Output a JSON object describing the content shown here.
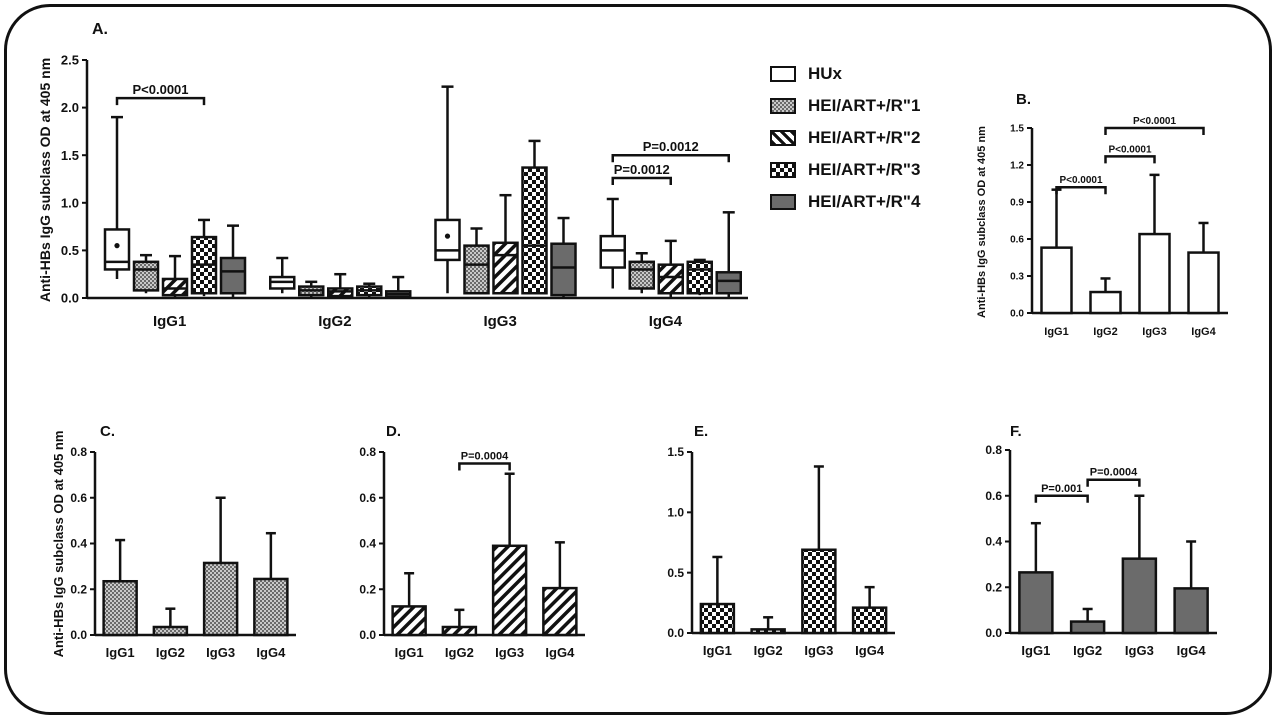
{
  "colors": {
    "line": "#111111",
    "dark_fill": "#6b6b6b",
    "text": "#111111"
  },
  "legend": {
    "items": [
      {
        "name": "HUx",
        "pattern": "white"
      },
      {
        "name": "HEI/ART+/R\"1",
        "pattern": "dots"
      },
      {
        "name": "HEI/ART+/R\"2",
        "pattern": "hatch"
      },
      {
        "name": "HEI/ART+/R\"3",
        "pattern": "checker"
      },
      {
        "name": "HEI/ART+/R\"4",
        "pattern": "dark"
      }
    ]
  },
  "chart_data": [
    {
      "panel": "A.",
      "type": "box",
      "ylabel": "Anti-HBs IgG subclass OD at 405 nm",
      "ylim": [
        0,
        2.5
      ],
      "yticks": [
        "0.0",
        "0.5",
        "1.0",
        "1.5",
        "2.0",
        "2.5"
      ],
      "categories": [
        "IgG1",
        "IgG2",
        "IgG3",
        "IgG4"
      ],
      "groups": [
        "HUx",
        "HEI/ART+/R\"1",
        "HEI/ART+/R\"2",
        "HEI/ART+/R\"3",
        "HEI/ART+/R\"4"
      ],
      "boxes": [
        [
          {
            "min": 0.2,
            "q1": 0.3,
            "median": 0.38,
            "q3": 0.72,
            "max": 1.9,
            "mean": 0.55
          },
          {
            "min": 0.05,
            "q1": 0.08,
            "median": 0.3,
            "q3": 0.38,
            "max": 0.45
          },
          {
            "min": 0.0,
            "q1": 0.03,
            "median": 0.1,
            "q3": 0.2,
            "max": 0.44
          },
          {
            "min": 0.02,
            "q1": 0.05,
            "median": 0.35,
            "q3": 0.64,
            "max": 0.82
          },
          {
            "min": 0.0,
            "q1": 0.05,
            "median": 0.28,
            "q3": 0.42,
            "max": 0.76
          }
        ],
        [
          {
            "min": 0.05,
            "q1": 0.1,
            "median": 0.17,
            "q3": 0.22,
            "max": 0.42
          },
          {
            "min": 0.0,
            "q1": 0.03,
            "median": 0.08,
            "q3": 0.12,
            "max": 0.17
          },
          {
            "min": 0.0,
            "q1": 0.02,
            "median": 0.07,
            "q3": 0.1,
            "max": 0.25
          },
          {
            "min": 0.0,
            "q1": 0.03,
            "median": 0.08,
            "q3": 0.12,
            "max": 0.15
          },
          {
            "min": 0.0,
            "q1": 0.01,
            "median": 0.04,
            "q3": 0.07,
            "max": 0.22
          }
        ],
        [
          {
            "min": 0.05,
            "q1": 0.4,
            "median": 0.5,
            "q3": 0.82,
            "max": 2.22,
            "mean": 0.65
          },
          {
            "min": 0.05,
            "q1": 0.05,
            "median": 0.35,
            "q3": 0.55,
            "max": 0.73
          },
          {
            "min": 0.05,
            "q1": 0.05,
            "median": 0.45,
            "q3": 0.58,
            "max": 1.08
          },
          {
            "min": 0.05,
            "q1": 0.05,
            "median": 0.55,
            "q3": 1.37,
            "max": 1.65
          },
          {
            "min": 0.0,
            "q1": 0.03,
            "median": 0.32,
            "q3": 0.57,
            "max": 0.84
          }
        ],
        [
          {
            "min": 0.1,
            "q1": 0.32,
            "median": 0.5,
            "q3": 0.65,
            "max": 1.04
          },
          {
            "min": 0.05,
            "q1": 0.1,
            "median": 0.3,
            "q3": 0.38,
            "max": 0.47
          },
          {
            "min": 0.0,
            "q1": 0.05,
            "median": 0.22,
            "q3": 0.35,
            "max": 0.6
          },
          {
            "min": 0.03,
            "q1": 0.05,
            "median": 0.3,
            "q3": 0.38,
            "max": 0.4
          },
          {
            "min": 0.0,
            "q1": 0.05,
            "median": 0.18,
            "q3": 0.27,
            "max": 0.9
          }
        ]
      ],
      "annotations": [
        {
          "text": "P<0.0001",
          "from_category": 0,
          "from_group": 0,
          "to_category": 0,
          "to_group": 3,
          "y": 2.1
        },
        {
          "text": "P=0.0012",
          "from_category": 3,
          "from_group": 0,
          "to_category": 3,
          "to_group": 2,
          "y": 1.26
        },
        {
          "text": "P=0.0012",
          "from_category": 3,
          "from_group": 0,
          "to_category": 3,
          "to_group": 4,
          "y": 1.5
        }
      ]
    },
    {
      "panel": "B.",
      "type": "bar",
      "pattern": "white",
      "ylabel": "Anti-HBs IgG subclass OD at 405 nm",
      "ylim": [
        0,
        1.5
      ],
      "yticks": [
        "0.0",
        "0.3",
        "0.6",
        "0.9",
        "1.2",
        "1.5"
      ],
      "categories": [
        "IgG1",
        "IgG2",
        "IgG3",
        "IgG4"
      ],
      "values": [
        0.53,
        0.17,
        0.64,
        0.49
      ],
      "errors": [
        0.47,
        0.11,
        0.48,
        0.24
      ],
      "annotations": [
        {
          "text": "P<0.0001",
          "from": 0,
          "to": 1,
          "y": 1.02
        },
        {
          "text": "P<0.0001",
          "from": 1,
          "to": 2,
          "y": 1.27
        },
        {
          "text": "P<0.0001",
          "from": 1,
          "to": 3,
          "y": 1.5
        }
      ]
    },
    {
      "panel": "C.",
      "type": "bar",
      "pattern": "dots",
      "ylabel": "Anti-HBs IgG subclass OD at 405 nm",
      "ylim": [
        0,
        0.8
      ],
      "yticks": [
        "0.0",
        "0.2",
        "0.4",
        "0.6",
        "0.8"
      ],
      "categories": [
        "IgG1",
        "IgG2",
        "IgG3",
        "IgG4"
      ],
      "values": [
        0.235,
        0.035,
        0.315,
        0.245
      ],
      "errors": [
        0.18,
        0.08,
        0.285,
        0.2
      ],
      "annotations": []
    },
    {
      "panel": "D.",
      "type": "bar",
      "pattern": "hatch",
      "ylabel": "",
      "ylim": [
        0,
        0.8
      ],
      "yticks": [
        "0.0",
        "0.2",
        "0.4",
        "0.6",
        "0.8"
      ],
      "categories": [
        "IgG1",
        "IgG2",
        "IgG3",
        "IgG4"
      ],
      "values": [
        0.125,
        0.035,
        0.39,
        0.205
      ],
      "errors": [
        0.145,
        0.075,
        0.315,
        0.2
      ],
      "annotations": [
        {
          "text": "P=0.0004",
          "from": 1,
          "to": 2,
          "y": 0.75
        }
      ]
    },
    {
      "panel": "E.",
      "type": "bar",
      "pattern": "checker",
      "ylabel": "",
      "ylim": [
        0,
        1.5
      ],
      "yticks": [
        "0.0",
        "0.5",
        "1.0",
        "1.5"
      ],
      "categories": [
        "IgG1",
        "IgG2",
        "IgG3",
        "IgG4"
      ],
      "values": [
        0.24,
        0.03,
        0.69,
        0.21
      ],
      "errors": [
        0.39,
        0.1,
        0.69,
        0.17
      ],
      "annotations": []
    },
    {
      "panel": "F.",
      "type": "bar",
      "pattern": "dark",
      "ylabel": "",
      "ylim": [
        0,
        0.8
      ],
      "yticks": [
        "0.0",
        "0.2",
        "0.4",
        "0.6",
        "0.8"
      ],
      "categories": [
        "IgG1",
        "IgG2",
        "IgG3",
        "IgG4"
      ],
      "values": [
        0.265,
        0.05,
        0.325,
        0.195
      ],
      "errors": [
        0.215,
        0.055,
        0.275,
        0.205
      ],
      "annotations": [
        {
          "text": "P=0.001",
          "from": 0,
          "to": 1,
          "y": 0.6
        },
        {
          "text": "P=0.0004",
          "from": 1,
          "to": 2,
          "y": 0.67
        }
      ]
    }
  ]
}
